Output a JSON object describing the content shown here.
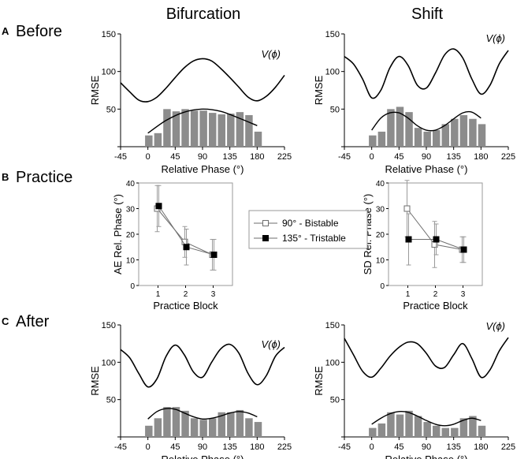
{
  "figure": {
    "col_titles": [
      "Bifurcation",
      "Shift"
    ],
    "rows": [
      {
        "letter": "A",
        "title": "Before"
      },
      {
        "letter": "B",
        "title": "Practice"
      },
      {
        "letter": "C",
        "title": "After"
      }
    ],
    "potential_label": "V(ϕ)"
  },
  "chart_data": [
    {
      "id": "before-bifurcation",
      "type": "bar",
      "title": "Before — Bifurcation",
      "xlabel": "Relative Phase (°)",
      "ylabel": "RMSE",
      "xlim": [
        -45,
        225
      ],
      "ylim": [
        0,
        150
      ],
      "xticks": [
        -45,
        0,
        45,
        90,
        135,
        180,
        225
      ],
      "yticks": [
        0,
        50,
        100,
        150
      ],
      "bar_x": [
        0,
        15,
        30,
        45,
        60,
        75,
        90,
        105,
        120,
        135,
        150,
        165,
        180
      ],
      "bar_values": [
        15,
        18,
        50,
        47,
        50,
        48,
        48,
        45,
        43,
        44,
        46,
        42,
        20
      ],
      "fit_curve": {
        "x": [
          0,
          30,
          60,
          90,
          120,
          150,
          180
        ],
        "y": [
          18,
          35,
          46,
          50,
          47,
          38,
          28
        ]
      },
      "potential_curve": {
        "x": [
          -45,
          -30,
          -15,
          0,
          15,
          30,
          45,
          60,
          75,
          90,
          105,
          120,
          135,
          150,
          165,
          180,
          195,
          210,
          225
        ],
        "y": [
          85,
          73,
          62,
          60,
          66,
          78,
          92,
          105,
          114,
          117,
          114,
          104,
          92,
          79,
          66,
          61,
          67,
          79,
          95
        ]
      }
    },
    {
      "id": "before-shift",
      "type": "bar",
      "title": "Before — Shift",
      "xlabel": "Relative Phase (°)",
      "ylabel": "RMSE",
      "xlim": [
        -45,
        225
      ],
      "ylim": [
        0,
        150
      ],
      "xticks": [
        -45,
        0,
        45,
        90,
        135,
        180,
        225
      ],
      "yticks": [
        0,
        50,
        100,
        150
      ],
      "bar_x": [
        0,
        15,
        30,
        45,
        60,
        75,
        90,
        105,
        120,
        135,
        150,
        165,
        180
      ],
      "bar_values": [
        15,
        20,
        50,
        53,
        46,
        25,
        20,
        22,
        30,
        37,
        42,
        37,
        30
      ],
      "fit_curve": {
        "x": [
          0,
          15,
          30,
          45,
          60,
          75,
          90,
          105,
          120,
          135,
          150,
          165,
          180
        ],
        "y": [
          22,
          38,
          45,
          45,
          38,
          28,
          22,
          22,
          28,
          37,
          45,
          46,
          38
        ]
      },
      "potential_curve": {
        "x": [
          -45,
          -30,
          -15,
          0,
          15,
          30,
          45,
          60,
          75,
          90,
          105,
          120,
          135,
          150,
          165,
          180,
          195,
          210,
          225
        ],
        "y": [
          120,
          110,
          90,
          65,
          75,
          105,
          120,
          108,
          82,
          78,
          98,
          122,
          130,
          118,
          90,
          70,
          82,
          110,
          128
        ]
      }
    },
    {
      "id": "practice-ae",
      "type": "line",
      "title": "Practice — AE",
      "xlabel": "Practice Block",
      "ylabel": "AE Rel. Phase (°)",
      "xlim": [
        0.3,
        3.7
      ],
      "ylim": [
        0,
        40
      ],
      "xticks": [
        1,
        2,
        3
      ],
      "yticks": [
        0,
        10,
        20,
        30,
        40
      ],
      "series": [
        {
          "name": "90° - Bistable",
          "marker": "open-square",
          "x": [
            1,
            2,
            3
          ],
          "values": [
            30,
            17,
            12
          ],
          "err": [
            9,
            6,
            6
          ]
        },
        {
          "name": "135° - Tristable",
          "marker": "filled-square",
          "x": [
            1,
            2,
            3
          ],
          "values": [
            31,
            15,
            12
          ],
          "err": [
            8,
            7,
            6
          ]
        }
      ]
    },
    {
      "id": "practice-sd",
      "type": "line",
      "title": "Practice — SD",
      "xlabel": "Practice Block",
      "ylabel": "SD Rel. Phase (°)",
      "xlim": [
        0.3,
        3.7
      ],
      "ylim": [
        0,
        40
      ],
      "xticks": [
        1,
        2,
        3
      ],
      "yticks": [
        0,
        10,
        20,
        30,
        40
      ],
      "series": [
        {
          "name": "90° - Bistable",
          "marker": "open-square",
          "x": [
            1,
            2,
            3
          ],
          "values": [
            30,
            16,
            14
          ],
          "err": [
            11,
            9,
            5
          ]
        },
        {
          "name": "135° - Tristable",
          "marker": "filled-square",
          "x": [
            1,
            2,
            3
          ],
          "values": [
            18,
            18,
            14
          ],
          "err": [
            10,
            6,
            5
          ]
        }
      ]
    },
    {
      "id": "after-bifurcation",
      "type": "bar",
      "title": "After — Bifurcation",
      "xlabel": "Relative Phase (°)",
      "ylabel": "RMSE",
      "xlim": [
        -45,
        225
      ],
      "ylim": [
        0,
        150
      ],
      "xticks": [
        -45,
        0,
        45,
        90,
        135,
        180,
        225
      ],
      "yticks": [
        0,
        50,
        100,
        150
      ],
      "bar_x": [
        0,
        15,
        30,
        45,
        60,
        75,
        90,
        105,
        120,
        135,
        150,
        165,
        180
      ],
      "bar_values": [
        15,
        25,
        40,
        40,
        35,
        25,
        23,
        25,
        33,
        33,
        36,
        25,
        20
      ],
      "fit_curve": {
        "x": [
          0,
          15,
          30,
          45,
          60,
          75,
          90,
          105,
          120,
          135,
          150,
          165,
          180
        ],
        "y": [
          24,
          34,
          38,
          37,
          32,
          27,
          24,
          25,
          28,
          32,
          34,
          32,
          27
        ]
      },
      "potential_curve": {
        "x": [
          -45,
          -30,
          -15,
          0,
          15,
          30,
          45,
          60,
          75,
          90,
          105,
          120,
          135,
          150,
          165,
          180,
          195,
          210,
          225
        ],
        "y": [
          117,
          106,
          85,
          67,
          78,
          108,
          123,
          110,
          87,
          80,
          100,
          118,
          124,
          112,
          85,
          70,
          82,
          108,
          120
        ]
      }
    },
    {
      "id": "after-shift",
      "type": "bar",
      "title": "After — Shift",
      "xlabel": "Relative Phase (°)",
      "ylabel": "RMSE",
      "xlim": [
        -45,
        225
      ],
      "ylim": [
        0,
        150
      ],
      "xticks": [
        -45,
        0,
        45,
        90,
        135,
        180,
        225
      ],
      "yticks": [
        0,
        50,
        100,
        150
      ],
      "bar_x": [
        0,
        15,
        30,
        45,
        60,
        75,
        90,
        105,
        120,
        135,
        150,
        165,
        180
      ],
      "bar_values": [
        12,
        18,
        33,
        30,
        35,
        28,
        20,
        15,
        12,
        12,
        25,
        28,
        15
      ],
      "fit_curve": {
        "x": [
          0,
          15,
          30,
          45,
          60,
          75,
          90,
          105,
          120,
          135,
          150,
          165,
          180
        ],
        "y": [
          17,
          25,
          31,
          34,
          33,
          28,
          22,
          17,
          15,
          17,
          22,
          25,
          22
        ]
      },
      "potential_curve": {
        "x": [
          -45,
          -30,
          -15,
          0,
          15,
          30,
          45,
          60,
          75,
          90,
          105,
          120,
          135,
          150,
          165,
          180,
          195,
          210,
          225
        ],
        "y": [
          132,
          110,
          88,
          80,
          92,
          108,
          120,
          127,
          125,
          112,
          95,
          93,
          110,
          125,
          105,
          80,
          90,
          115,
          133
        ]
      }
    }
  ],
  "legend": {
    "items": [
      "90° - Bistable",
      "135° - Tristable"
    ],
    "markers": [
      "open-square",
      "filled-square"
    ]
  },
  "colors": {
    "bar": "#8c8c8c",
    "line": "#000000",
    "series_line": "#6e6e6e",
    "error": "#9a9a9a",
    "frame": "#9a9a9a"
  }
}
